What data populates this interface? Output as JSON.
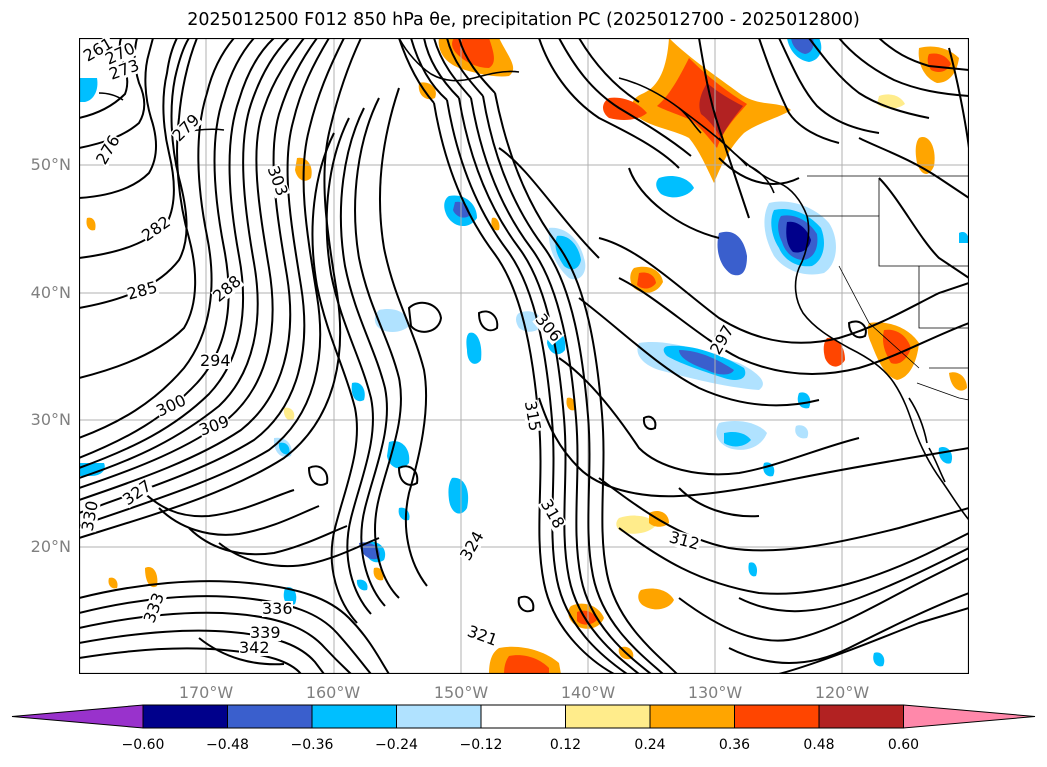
{
  "title": "2025012500 F012 850 hPa θe, precipitation PC (2025012700 - 2025012800)",
  "map": {
    "lat_labels": [
      "50°N",
      "40°N",
      "30°N",
      "20°N"
    ],
    "lon_labels": [
      "170°W",
      "160°W",
      "150°W",
      "140°W",
      "130°W",
      "120°W"
    ],
    "contour_labels": [
      "261",
      "270",
      "273",
      "276",
      "279",
      "282",
      "285",
      "288",
      "294",
      "297",
      "300",
      "303",
      "306",
      "309",
      "312",
      "315",
      "318",
      "321",
      "324",
      "327",
      "330",
      "333",
      "336",
      "339",
      "342"
    ],
    "colors": {
      "land_outline": "#000000",
      "grid": "#b0b0b0",
      "frame": "#000000"
    }
  },
  "colorbar": {
    "ticks": [
      "−0.60",
      "−0.48",
      "−0.36",
      "−0.24",
      "−0.12",
      "0.12",
      "0.24",
      "0.36",
      "0.48",
      "0.60"
    ],
    "colors": [
      "#9932cc",
      "#00008b",
      "#3a5fcd",
      "#00bfff",
      "#b0e2ff",
      "#ffffff",
      "#ffec8b",
      "#ffa500",
      "#ff4500",
      "#b22222",
      "#ff88aa"
    ]
  }
}
